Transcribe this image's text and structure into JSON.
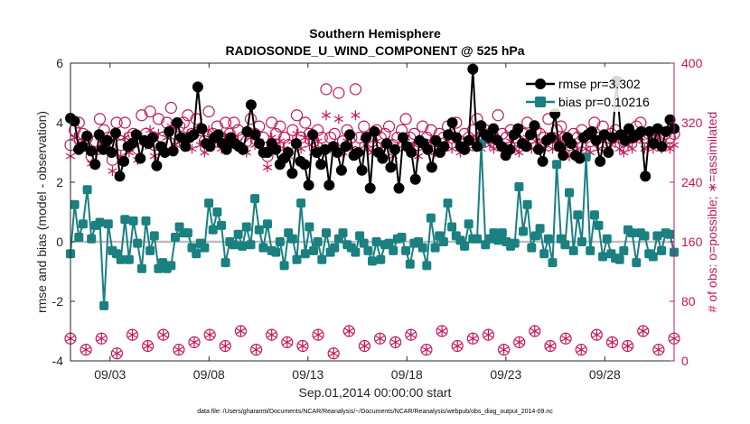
{
  "chart_data": {
    "type": "line",
    "title": "Southern Hemisphere",
    "subtitle": "RADIOSONDE_U_WIND_COMPONENT @ 525 hPa",
    "xlabel": "Sep.01,2014 00:00:00 start",
    "ylabel_left": "rmse and bias (model - observation)",
    "ylabel_right": "# of obs: o=possible; ∗=assimilated",
    "xlim": [
      1,
      31.5
    ],
    "ylim_left": [
      -4,
      6
    ],
    "ylim_right": [
      0,
      400
    ],
    "x_tick_values": [
      3,
      8,
      13,
      18,
      23,
      28
    ],
    "x_tick_labels": [
      "09/03",
      "09/08",
      "09/13",
      "09/18",
      "09/23",
      "09/28"
    ],
    "y_left_ticks": [
      -4,
      -2,
      0,
      2,
      4,
      6
    ],
    "y_right_ticks": [
      0,
      80,
      160,
      240,
      320,
      400
    ],
    "zero_line": 0,
    "legend": {
      "position": "top-right",
      "entries": [
        "rmse pr=3.302",
        "bias pr=0.10216"
      ]
    },
    "footnote": "data file: /Users/gharamti/Documents/NCAR/Reanalysis/~/Documents/NCAR/Reanalysis/webpub/obs_diag_output_2014-09.nc",
    "series": [
      {
        "name": "rmse",
        "axis": "left",
        "color": "#000000",
        "values": [
          4.15,
          4.05,
          3.1,
          3.2,
          3.55,
          3.05,
          2.6,
          3.6,
          3.1,
          3.4,
          3.0,
          3.65,
          2.2,
          2.7,
          3.2,
          3.3,
          3.6,
          2.8,
          3.4,
          3.3,
          3.5,
          2.55,
          3.2,
          3.0,
          3.7,
          3.05,
          4.0,
          3.5,
          3.2,
          3.5,
          3.6,
          5.2,
          3.8,
          3.3,
          3.2,
          3.5,
          3.6,
          3.3,
          3.1,
          3.5,
          3.3,
          3.2,
          3.1,
          3.7,
          4.6,
          3.6,
          3.3,
          3.0,
          3.0,
          3.3,
          3.1,
          2.6,
          2.8,
          3.0,
          2.3,
          3.3,
          2.7,
          2.6,
          1.9,
          3.6,
          3.0,
          2.6,
          3.1,
          1.9,
          3.2,
          3.0,
          2.4,
          3.2,
          3.6,
          2.9,
          3.0,
          2.4,
          3.5,
          1.8,
          3.7,
          3.0,
          2.8,
          3.3,
          2.5,
          3.1,
          1.8,
          3.5,
          3.2,
          3.0,
          2.1,
          3.4,
          3.3,
          3.1,
          2.5,
          3.4,
          3.0,
          3.2,
          3.6,
          4.0,
          3.5,
          3.2,
          3.1,
          3.4,
          5.8,
          3.2,
          3.9,
          3.6,
          3.5,
          3.8,
          3.4,
          3.2,
          2.9,
          3.1,
          3.6,
          3.8,
          3.3,
          3.2,
          3.6,
          3.9,
          3.1,
          2.7,
          3.4,
          3.5,
          4.3,
          3.2,
          2.9,
          3.5,
          3.3,
          2.9,
          2.8,
          3.5,
          3.6,
          3.7,
          3.4,
          2.7,
          3.6,
          3.0,
          3.5,
          5.4,
          3.6,
          3.4,
          3.8,
          3.5,
          3.6,
          3.7,
          2.2,
          3.7,
          3.3,
          3.8,
          3.2,
          3.7,
          4.1,
          3.8
        ]
      },
      {
        "name": "bias",
        "axis": "left",
        "color": "#1a8080",
        "values": [
          -0.4,
          1.25,
          0.15,
          0.6,
          1.75,
          0.1,
          0.55,
          0.65,
          -2.15,
          0.6,
          -0.3,
          -0.4,
          -0.6,
          0.75,
          -0.6,
          0.7,
          -0.05,
          -0.9,
          0.7,
          -0.3,
          0.2,
          -0.9,
          -0.7,
          -0.9,
          -0.8,
          0.15,
          0.5,
          0.3,
          0.3,
          -0.2,
          -0.4,
          -0.05,
          -0.2,
          1.3,
          0.4,
          1.0,
          0.55,
          -0.7,
          0.0,
          -0.1,
          0.25,
          -0.15,
          0.5,
          -0.1,
          1.45,
          0.4,
          -0.2,
          0.6,
          -0.3,
          -0.35,
          0.0,
          -0.8,
          0.3,
          0.1,
          -0.6,
          1.3,
          -0.4,
          0.5,
          -0.3,
          0.0,
          -0.6,
          0.3,
          -0.35,
          -0.2,
          0.1,
          0.3,
          -0.1,
          -0.2,
          -0.35,
          0.2,
          -0.05,
          -0.3,
          -0.65,
          0.0,
          -0.6,
          -0.1,
          -0.05,
          -0.3,
          0.1,
          0.15,
          -0.3,
          -0.75,
          -0.05,
          0.0,
          -0.2,
          -0.8,
          0.8,
          -0.2,
          0.2,
          0.0,
          1.3,
          0.5,
          0.2,
          0.05,
          -0.15,
          0.6,
          0.1,
          0.1,
          3.3,
          -0.1,
          0.1,
          0.3,
          0.05,
          0.3,
          0.0,
          -0.15,
          -0.05,
          1.85,
          0.35,
          1.25,
          -0.2,
          0.2,
          0.45,
          -0.4,
          0.1,
          -0.7,
          2.6,
          0.1,
          -0.1,
          1.65,
          -0.3,
          0.9,
          0.0,
          2.85,
          -0.3,
          0.9,
          0.55,
          -0.5,
          0.1,
          -0.4,
          -0.55,
          -0.6,
          -0.3,
          0.4,
          0.3,
          -0.7,
          0.3,
          0.2,
          -0.4,
          -0.5,
          0.2,
          -0.3,
          0.3,
          0.25,
          -0.35
        ]
      },
      {
        "name": "obs possible (o)",
        "axis": "right",
        "color": "#c2185b",
        "values": [
          290,
          310,
          320,
          305,
          300,
          275,
          295,
          325,
          310,
          300,
          270,
          320,
          290,
          320,
          300,
          305,
          285,
          330,
          305,
          335,
          290,
          325,
          300,
          320,
          340,
          305,
          315,
          320,
          330,
          305,
          325,
          310,
          295,
          335,
          305,
          315,
          300,
          320,
          305,
          320,
          310,
          300,
          295,
          325,
          305,
          315,
          300,
          275,
          320,
          305,
          315,
          300,
          290,
          310,
          330,
          300,
          320,
          305,
          295,
          310,
          300,
          365,
          300,
          305,
          360,
          295,
          310,
          300,
          365,
          300,
          315,
          300,
          295,
          310,
          300,
          305,
          315,
          290,
          300,
          310,
          325,
          300,
          305,
          290,
          315,
          300,
          310,
          295,
          305,
          300,
          315,
          300,
          320,
          295,
          305,
          300,
          310,
          325,
          300,
          310,
          305,
          300,
          330,
          305,
          300,
          310,
          300,
          295,
          305,
          320,
          300,
          310,
          305,
          300,
          325,
          300,
          310,
          315,
          300,
          290,
          305,
          300,
          310,
          300,
          295,
          320,
          300,
          315,
          300,
          305,
          310,
          300,
          295,
          305,
          300,
          315,
          320,
          300,
          305,
          300,
          310,
          300,
          305,
          300,
          305
        ]
      },
      {
        "name": "obs assimilated (∗)",
        "axis": "right",
        "color": "#c2185b",
        "values": [
          275,
          300,
          290,
          295,
          285,
          265,
          280,
          300,
          290,
          285,
          255,
          300,
          275,
          300,
          280,
          290,
          270,
          300,
          290,
          310,
          275,
          305,
          285,
          300,
          315,
          290,
          295,
          300,
          305,
          285,
          305,
          290,
          280,
          310,
          290,
          295,
          285,
          300,
          290,
          300,
          295,
          285,
          280,
          300,
          290,
          295,
          285,
          260,
          300,
          290,
          295,
          285,
          275,
          295,
          305,
          285,
          300,
          290,
          280,
          295,
          285,
          330,
          285,
          290,
          325,
          280,
          295,
          285,
          330,
          285,
          295,
          285,
          280,
          295,
          285,
          290,
          295,
          275,
          285,
          295,
          300,
          285,
          290,
          275,
          295,
          285,
          295,
          280,
          290,
          285,
          295,
          285,
          300,
          280,
          290,
          285,
          295,
          300,
          285,
          295,
          290,
          285,
          300,
          290,
          285,
          295,
          285,
          280,
          290,
          300,
          285,
          295,
          290,
          285,
          300,
          285,
          295,
          295,
          285,
          275,
          290,
          285,
          295,
          285,
          280,
          300,
          285,
          295,
          285,
          290,
          295,
          285,
          280,
          290,
          285,
          295,
          300,
          285,
          290,
          285,
          295,
          285,
          290,
          285,
          290
        ]
      },
      {
        "name": "low obs possible (o)",
        "axis": "right",
        "color": "#c2185b",
        "values": [
          30,
          15,
          30,
          10,
          35,
          20,
          35,
          15,
          25,
          35,
          20,
          40,
          15,
          35,
          25,
          20,
          35,
          10,
          40,
          20,
          30,
          25,
          35,
          15,
          40,
          20,
          30,
          35,
          15,
          25,
          40,
          20,
          30,
          15,
          35,
          25,
          20,
          40,
          15,
          30
        ]
      },
      {
        "name": "low obs assimilated (∗)",
        "axis": "right",
        "color": "#c2185b",
        "values": [
          30,
          15,
          30,
          10,
          35,
          20,
          35,
          15,
          25,
          35,
          20,
          40,
          15,
          35,
          25,
          20,
          35,
          10,
          40,
          20,
          30,
          25,
          35,
          15,
          40,
          20,
          30,
          35,
          15,
          25,
          40,
          20,
          30,
          15,
          35,
          25,
          20,
          40,
          15,
          30
        ]
      }
    ]
  }
}
